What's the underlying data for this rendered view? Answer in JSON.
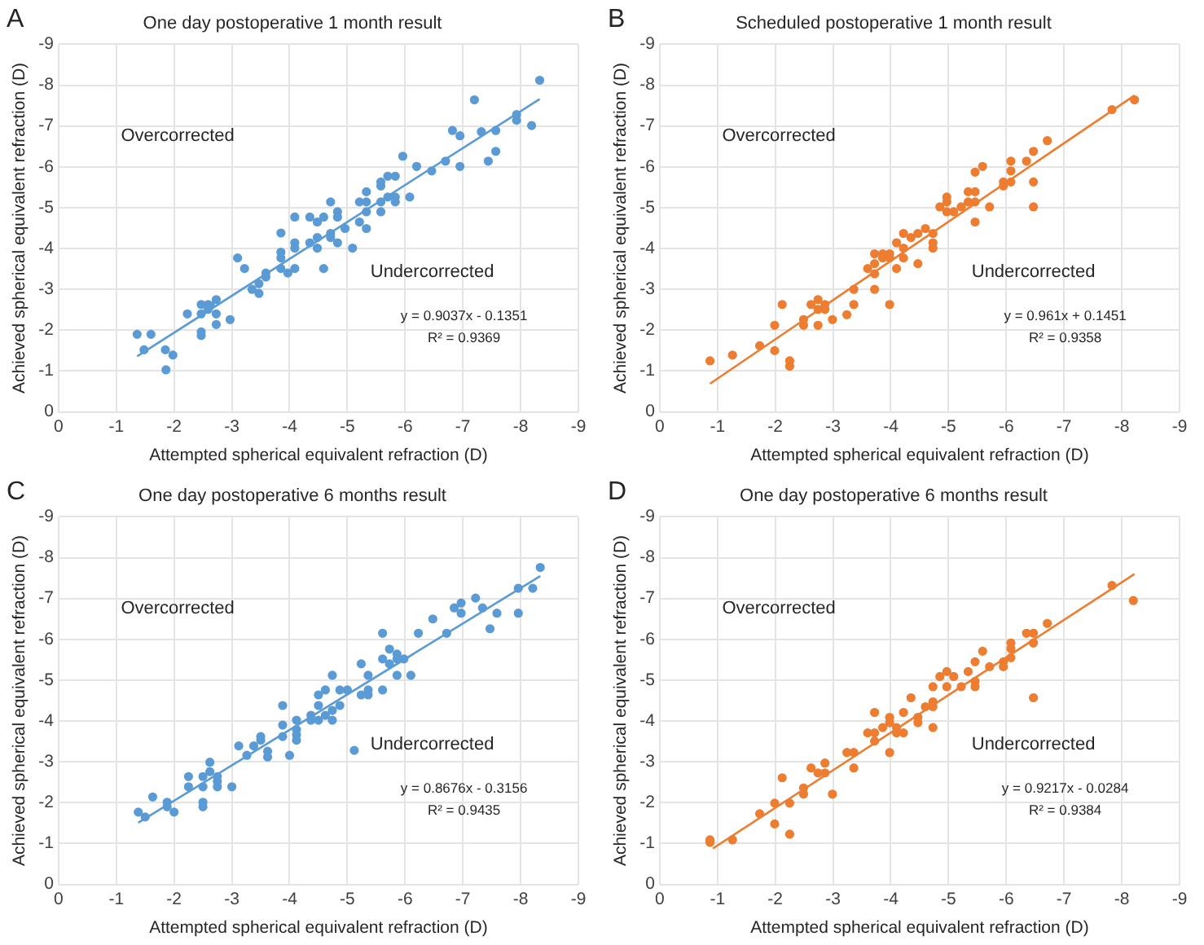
{
  "chart_data": [
    {
      "type": "scatter",
      "title": "One day postoperative 1 month result",
      "xlabel": "Attempted spherical equivalent refraction (D)",
      "ylabel": "Achieved spherical equivalent refraction (D)",
      "xlim": [
        0,
        -9
      ],
      "ylim": [
        0,
        -9
      ],
      "xticks": [
        0,
        -1,
        -2,
        -3,
        -4,
        -5,
        -6,
        -7,
        -8,
        -9
      ],
      "yticks": [
        0,
        -1,
        -2,
        -3,
        -4,
        -5,
        -6,
        -7,
        -8,
        -9
      ],
      "grid": true,
      "legend": false,
      "annotations": [
        "A",
        "Overcorrected",
        "Undercorrected",
        "y = 0.9037x - 0.1351",
        "R² = 0.9369"
      ],
      "series": [
        {
          "color": "#5b9bd5",
          "marker": "circle",
          "x": [
            -1.36,
            -1.48,
            -1.6,
            -1.85,
            -1.86,
            -1.98,
            -2.23,
            -2.47,
            -2.47,
            -2.47,
            -2.47,
            -2.59,
            -2.59,
            -2.63,
            -2.73,
            -2.73,
            -2.73,
            -2.97,
            -3.1,
            -3.22,
            -3.35,
            -3.47,
            -3.47,
            -3.59,
            -3.59,
            -3.85,
            -3.85,
            -3.85,
            -3.85,
            -3.97,
            -4.09,
            -4.09,
            -4.09,
            -4.09,
            -4.35,
            -4.35,
            -4.48,
            -4.48,
            -4.48,
            -4.59,
            -4.59,
            -4.71,
            -4.71,
            -4.71,
            -4.83,
            -4.83,
            -4.83,
            -4.96,
            -5.09,
            -5.21,
            -5.21,
            -5.33,
            -5.33,
            -5.33,
            -5.33,
            -5.58,
            -5.58,
            -5.58,
            -5.58,
            -5.7,
            -5.7,
            -5.83,
            -5.83,
            -5.83,
            -5.96,
            -6.08,
            -6.2,
            -6.46,
            -6.7,
            -6.82,
            -6.95,
            -6.95,
            -7.2,
            -7.32,
            -7.44,
            -7.57,
            -7.57,
            -7.93,
            -7.93,
            -8.19,
            -8.33
          ],
          "values": [
            -1.9,
            -1.52,
            -1.9,
            -1.52,
            -1.03,
            -1.39,
            -2.4,
            -2.63,
            -2.4,
            -1.96,
            -1.87,
            -2.63,
            -2.51,
            -2.6,
            -2.75,
            -2.4,
            -2.14,
            -2.26,
            -3.77,
            -3.51,
            -3.0,
            -2.9,
            -3.14,
            -3.3,
            -3.4,
            -4.38,
            -3.91,
            -3.77,
            -3.51,
            -3.4,
            -4.77,
            -4.14,
            -4.01,
            -3.51,
            -4.77,
            -4.14,
            -4.65,
            -4.27,
            -4.01,
            -4.77,
            -3.51,
            -5.14,
            -4.37,
            -4.27,
            -4.14,
            -4.9,
            -4.77,
            -4.49,
            -4.01,
            -5.14,
            -4.65,
            -5.39,
            -5.14,
            -4.9,
            -4.49,
            -5.63,
            -5.53,
            -5.14,
            -4.9,
            -5.77,
            -5.26,
            -5.77,
            -5.26,
            -5.14,
            -6.26,
            -5.26,
            -6.01,
            -5.9,
            -6.14,
            -6.89,
            -6.76,
            -6.01,
            -7.64,
            -6.86,
            -6.14,
            -6.89,
            -6.38,
            -7.28,
            -7.14,
            -7.01,
            -8.12
          ]
        },
        {
          "type": "line",
          "color": "#5b9bd5",
          "marker": "none",
          "x": [
            -1.36,
            -8.33
          ],
          "values": [
            -1.36,
            -7.66
          ]
        }
      ]
    },
    {
      "type": "scatter",
      "title": "Scheduled postoperative 1 month result",
      "xlabel": "Attempted spherical equivalent refraction (D)",
      "ylabel": "Achieved spherical equivalent refraction (D)",
      "xlim": [
        0,
        -9
      ],
      "ylim": [
        0,
        -9
      ],
      "xticks": [
        0,
        -1,
        -2,
        -3,
        -4,
        -5,
        -6,
        -7,
        -8,
        -9
      ],
      "yticks": [
        0,
        -1,
        -2,
        -3,
        -4,
        -5,
        -6,
        -7,
        -8,
        -9
      ],
      "grid": true,
      "legend": false,
      "annotations": [
        "B",
        "Overcorrected",
        "Undercorrected",
        "y = 0.961x + 0.1451",
        "R² = 0.9358"
      ],
      "series": [
        {
          "color": "#ed7d31",
          "marker": "circle",
          "x": [
            -0.87,
            -1.26,
            -1.73,
            -1.99,
            -1.99,
            -2.12,
            -2.25,
            -2.25,
            -2.49,
            -2.49,
            -2.62,
            -2.74,
            -2.74,
            -2.74,
            -2.86,
            -2.86,
            -2.99,
            -3.24,
            -3.36,
            -3.36,
            -3.6,
            -3.72,
            -3.72,
            -3.72,
            -3.72,
            -3.86,
            -3.86,
            -3.98,
            -3.98,
            -3.98,
            -4.1,
            -4.1,
            -4.22,
            -4.22,
            -4.22,
            -4.35,
            -4.47,
            -4.47,
            -4.6,
            -4.73,
            -4.73,
            -4.73,
            -4.85,
            -4.97,
            -4.97,
            -4.97,
            -5.09,
            -5.22,
            -5.34,
            -5.34,
            -5.46,
            -5.46,
            -5.46,
            -5.46,
            -5.59,
            -5.71,
            -5.95,
            -5.95,
            -6.08,
            -6.08,
            -6.08,
            -6.35,
            -6.47,
            -6.47,
            -6.47,
            -6.71,
            -7.83,
            -8.22
          ],
          "values": [
            -1.25,
            -1.39,
            -1.62,
            -2.12,
            -1.5,
            -2.63,
            -1.25,
            -1.12,
            -2.26,
            -2.12,
            -2.63,
            -2.75,
            -2.51,
            -2.12,
            -2.63,
            -2.51,
            -2.26,
            -2.38,
            -3.0,
            -2.63,
            -3.51,
            -3.87,
            -3.63,
            -3.38,
            -3.0,
            -3.87,
            -3.77,
            -3.87,
            -3.77,
            -2.63,
            -3.51,
            -4.14,
            -4.37,
            -4.01,
            -3.77,
            -4.27,
            -4.37,
            -3.63,
            -4.49,
            -4.37,
            -4.14,
            -4.01,
            -5.02,
            -5.26,
            -5.14,
            -4.9,
            -4.9,
            -5.02,
            -5.39,
            -5.14,
            -5.87,
            -5.39,
            -5.14,
            -4.65,
            -6.01,
            -5.02,
            -5.63,
            -5.53,
            -5.63,
            -5.9,
            -6.14,
            -6.14,
            -6.38,
            -5.63,
            -5.02,
            -6.64,
            -7.4,
            -7.64
          ]
        },
        {
          "type": "line",
          "color": "#ed7d31",
          "marker": "none",
          "x": [
            -0.87,
            -8.22
          ],
          "values": [
            -0.69,
            -7.75
          ]
        }
      ]
    },
    {
      "type": "scatter",
      "title": "One day postoperative 6 months result",
      "xlabel": "Attempted spherical equivalent refraction (D)",
      "ylabel": "Achieved spherical equivalent refraction (D)",
      "xlim": [
        0,
        -9
      ],
      "ylim": [
        0,
        -9
      ],
      "xticks": [
        0,
        -1,
        -2,
        -3,
        -4,
        -5,
        -6,
        -7,
        -8,
        -9
      ],
      "yticks": [
        0,
        -1,
        -2,
        -3,
        -4,
        -5,
        -6,
        -7,
        -8,
        -9
      ],
      "grid": true,
      "legend": false,
      "annotations": [
        "C",
        "Overcorrected",
        "Undercorrected",
        "y = 0.8676x - 0.3156",
        "R² = 0.9435"
      ],
      "series": [
        {
          "color": "#5b9bd5",
          "marker": "circle",
          "x": [
            -1.38,
            -1.5,
            -1.63,
            -1.88,
            -1.88,
            -2.0,
            -2.25,
            -2.25,
            -2.5,
            -2.5,
            -2.5,
            -2.5,
            -2.62,
            -2.62,
            -2.75,
            -2.75,
            -2.75,
            -3.0,
            -3.12,
            -3.26,
            -3.38,
            -3.5,
            -3.5,
            -3.62,
            -3.62,
            -3.88,
            -3.88,
            -3.88,
            -4.0,
            -4.12,
            -4.12,
            -4.12,
            -4.12,
            -4.37,
            -4.37,
            -4.5,
            -4.5,
            -4.5,
            -4.62,
            -4.62,
            -4.74,
            -4.74,
            -4.74,
            -4.87,
            -4.87,
            -5.0,
            -5.12,
            -5.24,
            -5.24,
            -5.36,
            -5.36,
            -5.36,
            -5.61,
            -5.61,
            -5.61,
            -5.73,
            -5.73,
            -5.86,
            -5.86,
            -5.86,
            -5.98,
            -6.1,
            -6.23,
            -6.48,
            -6.72,
            -6.85,
            -6.97,
            -6.97,
            -7.22,
            -7.34,
            -7.47,
            -7.59,
            -7.96,
            -7.96,
            -8.21,
            -8.34
          ],
          "values": [
            -1.77,
            -1.65,
            -2.14,
            -2.01,
            -1.9,
            -1.77,
            -2.64,
            -2.39,
            -2.64,
            -2.39,
            -2.01,
            -1.9,
            -2.99,
            -2.76,
            -2.64,
            -2.52,
            -2.39,
            -2.39,
            -3.39,
            -3.16,
            -3.39,
            -3.62,
            -3.53,
            -3.26,
            -3.12,
            -4.38,
            -3.9,
            -3.62,
            -3.16,
            -4.02,
            -3.79,
            -3.66,
            -3.53,
            -4.02,
            -4.14,
            -4.38,
            -4.64,
            -4.02,
            -4.76,
            -4.14,
            -5.12,
            -4.26,
            -4.02,
            -4.76,
            -4.38,
            -4.76,
            -3.28,
            -5.4,
            -4.64,
            -5.12,
            -4.76,
            -4.64,
            -6.15,
            -5.52,
            -4.76,
            -5.76,
            -5.4,
            -5.64,
            -5.52,
            -5.12,
            -5.52,
            -5.12,
            -6.15,
            -6.5,
            -6.15,
            -6.77,
            -6.89,
            -6.64,
            -7.01,
            -6.77,
            -6.26,
            -6.64,
            -7.25,
            -6.64,
            -7.25,
            -7.76
          ]
        },
        {
          "type": "line",
          "color": "#5b9bd5",
          "marker": "none",
          "x": [
            -1.38,
            -8.34
          ],
          "values": [
            -1.51,
            -7.55
          ]
        }
      ]
    },
    {
      "type": "scatter",
      "title": "One day postoperative 6 months result",
      "xlabel": "Attempted spherical equivalent refraction (D)",
      "ylabel": "Achieved spherical equivalent refraction (D)",
      "xlim": [
        0,
        -9
      ],
      "ylim": [
        0,
        -9
      ],
      "xticks": [
        0,
        -1,
        -2,
        -3,
        -4,
        -5,
        -6,
        -7,
        -8,
        -9
      ],
      "yticks": [
        0,
        -1,
        -2,
        -3,
        -4,
        -5,
        -6,
        -7,
        -8,
        -9
      ],
      "grid": true,
      "legend": false,
      "annotations": [
        "D",
        "Overcorrected",
        "Undercorrected",
        "y = 0.9217x - 0.0284",
        "R² = 0.9384"
      ],
      "series": [
        {
          "color": "#ed7d31",
          "marker": "circle",
          "x": [
            -0.87,
            -0.87,
            -1.26,
            -1.73,
            -1.99,
            -1.99,
            -2.12,
            -2.25,
            -2.25,
            -2.49,
            -2.49,
            -2.62,
            -2.74,
            -2.86,
            -2.86,
            -2.99,
            -3.24,
            -3.36,
            -3.36,
            -3.6,
            -3.72,
            -3.72,
            -3.72,
            -3.86,
            -3.98,
            -3.98,
            -3.98,
            -4.1,
            -4.1,
            -4.22,
            -4.22,
            -4.35,
            -4.47,
            -4.47,
            -4.6,
            -4.73,
            -4.73,
            -4.73,
            -4.73,
            -4.85,
            -4.97,
            -4.97,
            -5.09,
            -5.22,
            -5.34,
            -5.46,
            -5.46,
            -5.46,
            -5.59,
            -5.71,
            -5.95,
            -5.95,
            -6.08,
            -6.08,
            -6.08,
            -6.35,
            -6.47,
            -6.47,
            -6.47,
            -6.71,
            -7.83,
            -8.2
          ],
          "values": [
            -1.09,
            -1.03,
            -1.09,
            -1.73,
            -1.99,
            -1.48,
            -2.61,
            -1.99,
            -1.23,
            -2.36,
            -2.21,
            -2.85,
            -2.73,
            -2.97,
            -2.73,
            -2.21,
            -3.23,
            -3.23,
            -2.85,
            -3.71,
            -4.21,
            -3.71,
            -3.51,
            -3.84,
            -4.09,
            -3.96,
            -3.23,
            -3.84,
            -3.71,
            -3.71,
            -4.21,
            -4.57,
            -4.09,
            -3.96,
            -4.35,
            -4.47,
            -4.35,
            -4.84,
            -3.84,
            -5.09,
            -5.21,
            -4.84,
            -5.09,
            -4.84,
            -5.21,
            -5.45,
            -4.97,
            -4.84,
            -5.71,
            -5.33,
            -5.45,
            -5.33,
            -5.91,
            -5.77,
            -5.55,
            -6.15,
            -6.15,
            -5.91,
            -4.57,
            -6.39,
            -7.32,
            -6.95
          ]
        },
        {
          "type": "line",
          "color": "#ed7d31",
          "marker": "none",
          "x": [
            -0.92,
            -8.22
          ],
          "values": [
            -0.88,
            -7.6
          ]
        }
      ]
    }
  ]
}
